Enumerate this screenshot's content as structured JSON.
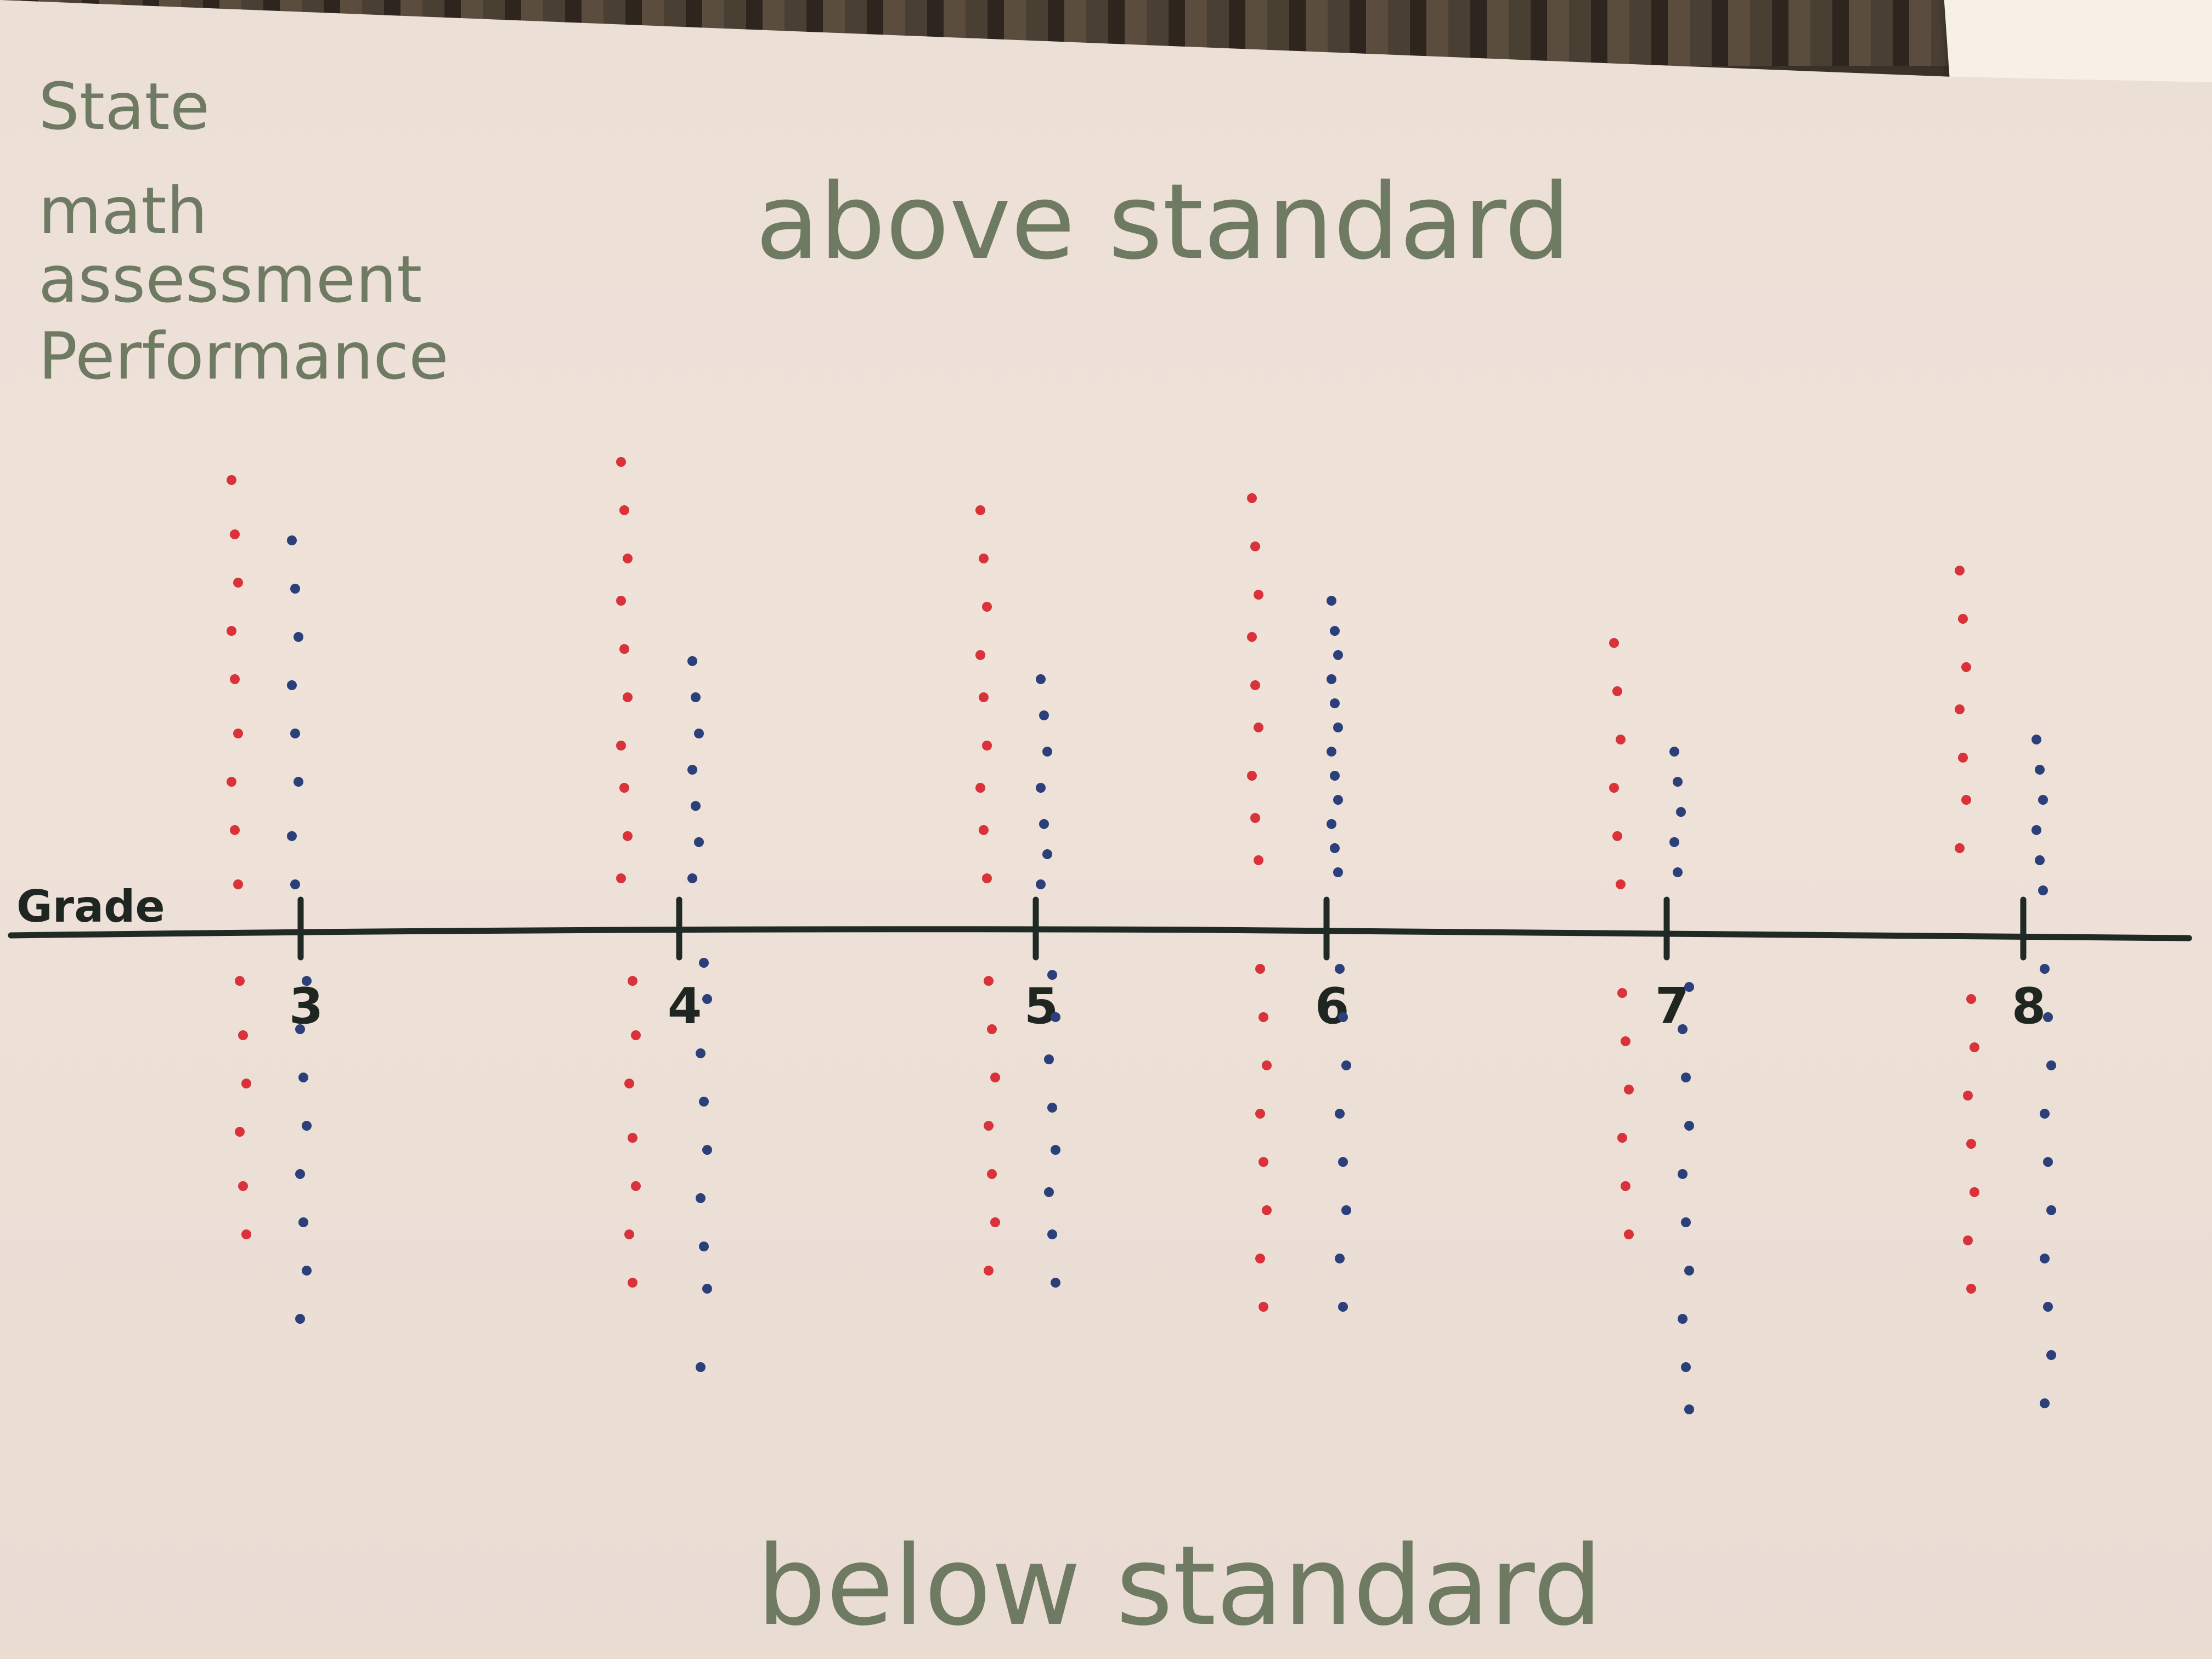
{
  "chart_data": {
    "type": "scatter",
    "title": "State math assessment Performance",
    "title_lines": [
      "State",
      "math",
      "assessment",
      "Performance"
    ],
    "xlabel": "Grade",
    "top_label": "above standard",
    "bottom_label": "below standard",
    "categories": [
      "3",
      "4",
      "5",
      "6",
      "7",
      "8"
    ],
    "grid": false,
    "legend": "none",
    "ylim": [
      -9,
      8
    ],
    "series": [
      {
        "color": "#d9323b",
        "points": [
          {
            "x": "3",
            "y": [
              7.5,
              6.6,
              5.8,
              5.0,
              4.2,
              3.3,
              2.5,
              1.7,
              0.8,
              -0.8,
              -1.7,
              -2.5,
              -3.3,
              -4.2,
              -5.0
            ]
          },
          {
            "x": "4",
            "y": [
              7.8,
              7.0,
              6.2,
              5.5,
              4.7,
              3.9,
              3.1,
              2.4,
              1.6,
              0.9,
              -0.8,
              -1.7,
              -2.5,
              -3.4,
              -4.2,
              -5.0,
              -5.8
            ]
          },
          {
            "x": "5",
            "y": [
              7.0,
              6.2,
              5.4,
              4.6,
              3.9,
              3.1,
              2.4,
              1.7,
              0.9,
              -0.8,
              -1.6,
              -2.4,
              -3.2,
              -4.0,
              -4.8,
              -5.6
            ]
          },
          {
            "x": "6",
            "y": [
              7.2,
              6.4,
              5.6,
              4.9,
              4.1,
              3.4,
              2.6,
              1.9,
              1.2,
              -0.6,
              -1.4,
              -2.2,
              -3.0,
              -3.8,
              -4.6,
              -5.4,
              -6.2
            ]
          },
          {
            "x": "7",
            "y": [
              4.8,
              4.0,
              3.2,
              2.4,
              1.6,
              0.8,
              -1.0,
              -1.8,
              -2.6,
              -3.4,
              -4.2,
              -5.0
            ]
          },
          {
            "x": "8",
            "y": [
              6.0,
              5.2,
              4.4,
              3.7,
              2.9,
              2.2,
              1.4,
              -1.1,
              -1.9,
              -2.7,
              -3.5,
              -4.3,
              -5.1,
              -5.9
            ]
          }
        ]
      },
      {
        "color": "#2b3f7a",
        "points": [
          {
            "x": "3",
            "y": [
              6.5,
              5.7,
              4.9,
              4.1,
              3.3,
              2.5,
              1.6,
              0.8,
              -0.8,
              -1.6,
              -2.4,
              -3.2,
              -4.0,
              -4.8,
              -5.6,
              -6.4
            ]
          },
          {
            "x": "4",
            "y": [
              4.5,
              3.9,
              3.3,
              2.7,
              2.1,
              1.5,
              0.9,
              -0.5,
              -1.1,
              -2.0,
              -2.8,
              -3.6,
              -4.4,
              -5.2,
              -5.9,
              -7.2
            ]
          },
          {
            "x": "5",
            "y": [
              4.2,
              3.6,
              3.0,
              2.4,
              1.8,
              1.3,
              0.8,
              -0.7,
              -1.4,
              -2.1,
              -2.9,
              -3.6,
              -4.3,
              -5.0,
              -5.8
            ]
          },
          {
            "x": "6",
            "y": [
              5.5,
              5.0,
              4.6,
              4.2,
              3.8,
              3.4,
              3.0,
              2.6,
              2.2,
              1.8,
              1.4,
              1.0,
              -0.6,
              -1.4,
              -2.2,
              -3.0,
              -3.8,
              -4.6,
              -5.4,
              -6.2
            ]
          },
          {
            "x": "7",
            "y": [
              3.0,
              2.5,
              2.0,
              1.5,
              1.0,
              -0.9,
              -1.6,
              -2.4,
              -3.2,
              -4.0,
              -4.8,
              -5.6,
              -6.4,
              -7.2,
              -7.9
            ]
          },
          {
            "x": "8",
            "y": [
              3.2,
              2.7,
              2.2,
              1.7,
              1.2,
              0.7,
              -0.6,
              -1.4,
              -2.2,
              -3.0,
              -3.8,
              -4.6,
              -5.4,
              -6.2,
              -7.0,
              -7.8
            ]
          }
        ]
      }
    ]
  }
}
